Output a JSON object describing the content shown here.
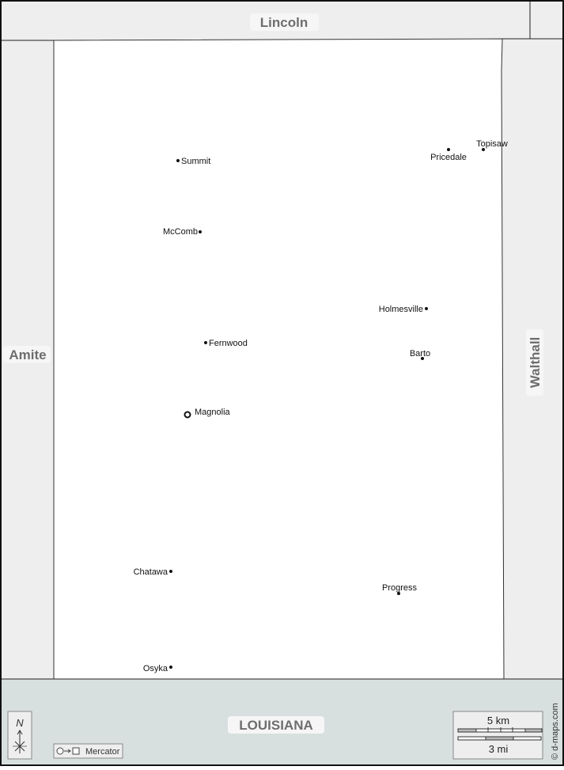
{
  "neighbors": {
    "north": "Lincoln",
    "west": "Amite",
    "east": "Walthall",
    "south": "LOUISIANA"
  },
  "towns": [
    {
      "name": "Summit",
      "capital": false
    },
    {
      "name": "Topisaw",
      "capital": false
    },
    {
      "name": "Pricedale",
      "capital": false
    },
    {
      "name": "McComb",
      "capital": false
    },
    {
      "name": "Holmesville",
      "capital": false
    },
    {
      "name": "Fernwood",
      "capital": false
    },
    {
      "name": "Barto",
      "capital": false
    },
    {
      "name": "Magnolia",
      "capital": true
    },
    {
      "name": "Chatawa",
      "capital": false
    },
    {
      "name": "Progress",
      "capital": false
    },
    {
      "name": "Osyka",
      "capital": false
    }
  ],
  "compass": {
    "label": "N"
  },
  "projection": {
    "label": "Mercator",
    "icon": "circle-to-square-icon"
  },
  "scale": {
    "km_label": "5 km",
    "mi_label": "3 mi"
  },
  "credit": "© d-maps.com",
  "colors": {
    "county": "#ffffff",
    "neighbor": "#eeeeee",
    "state": "#d8dfdf",
    "label": "#6e6e6e"
  }
}
